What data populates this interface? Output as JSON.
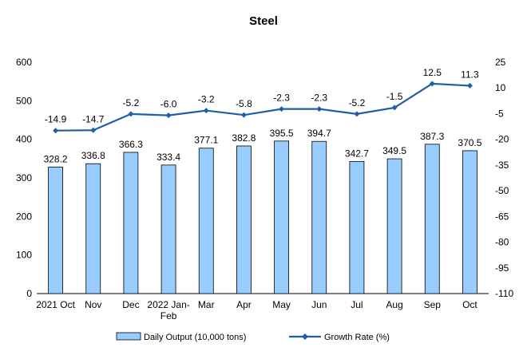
{
  "chart_data": {
    "type": "bar+line",
    "title": "Steel",
    "categories": [
      "2021 Oct",
      "Nov",
      "Dec",
      "2022 Jan-Feb",
      "Mar",
      "Apr",
      "May",
      "Jun",
      "Jul",
      "Aug",
      "Sep",
      "Oct"
    ],
    "series": [
      {
        "name": "Daily Output (10,000 tons)",
        "type": "bar",
        "axis": "left",
        "values": [
          328.2,
          336.8,
          366.3,
          333.4,
          377.1,
          382.8,
          395.5,
          394.7,
          342.7,
          349.5,
          387.3,
          370.5
        ]
      },
      {
        "name": "Growth Rate (%)",
        "type": "line",
        "axis": "right",
        "values": [
          -14.9,
          -14.7,
          -5.2,
          -6.0,
          -3.2,
          -5.8,
          -2.3,
          -2.3,
          -5.2,
          -1.5,
          12.5,
          11.3
        ]
      }
    ],
    "left_axis": {
      "min": 0,
      "max": 600,
      "step": 100
    },
    "right_axis": {
      "min": -110,
      "max": 25,
      "ticks": [
        25,
        10,
        -5,
        -20,
        -35,
        -50,
        -65,
        -80,
        -95,
        -110
      ]
    },
    "colors": {
      "bar_fill": "#99ccff",
      "bar_stroke": "#000000",
      "line": "#1f5fa8",
      "marker": "#1f5fa8"
    },
    "grid": false,
    "legend_position": "bottom"
  }
}
